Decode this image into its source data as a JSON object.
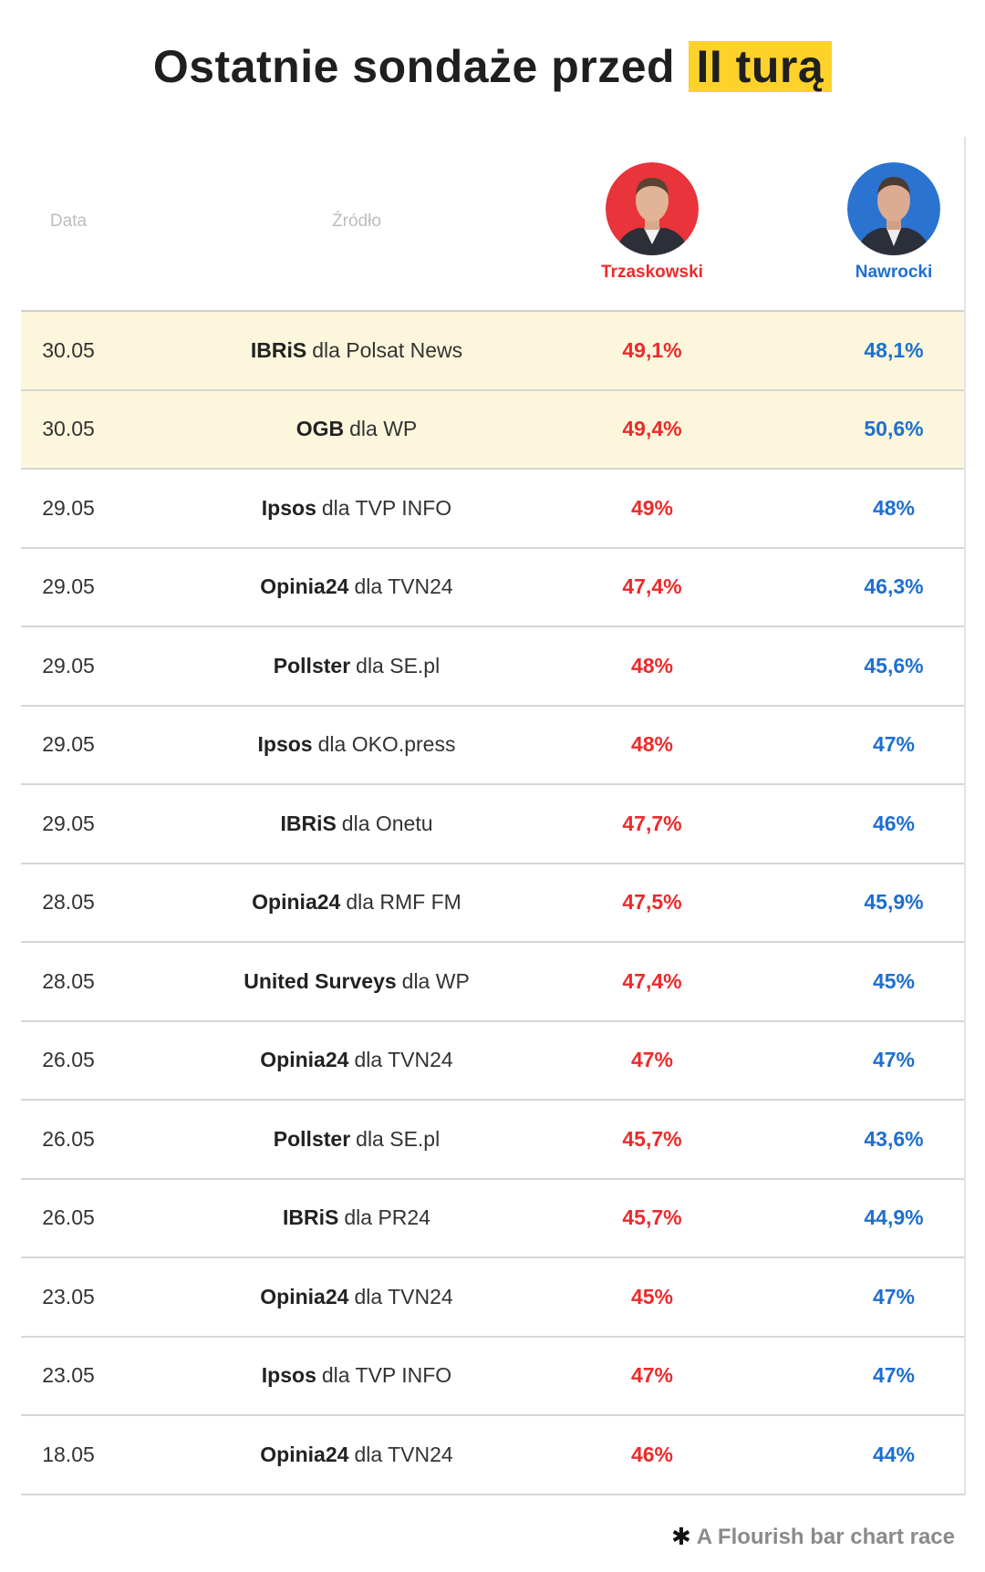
{
  "title": {
    "text": "Ostatnie sondaże przed",
    "highlight": "II turą"
  },
  "headers": {
    "date": "Data",
    "source": "Źródło"
  },
  "candidates": [
    {
      "name": "Trzaskowski",
      "color": "#ec2b2b"
    },
    {
      "name": "Nawrocki",
      "color": "#1e6fcf"
    }
  ],
  "highlight_color": "#fcf7dc",
  "rows": [
    {
      "date": "30.05",
      "pollster": "IBRiS",
      "media": "dla Polsat News",
      "trz": "49,1%",
      "naw": "48,1%",
      "highlighted": true
    },
    {
      "date": "30.05",
      "pollster": "OGB",
      "media": "dla WP",
      "trz": "49,4%",
      "naw": "50,6%",
      "highlighted": true
    },
    {
      "date": "29.05",
      "pollster": "Ipsos",
      "media": "dla TVP INFO",
      "trz": "49%",
      "naw": "48%"
    },
    {
      "date": "29.05",
      "pollster": "Opinia24",
      "media": "dla TVN24",
      "trz": "47,4%",
      "naw": "46,3%"
    },
    {
      "date": "29.05",
      "pollster": "Pollster",
      "media": "dla SE.pl",
      "trz": "48%",
      "naw": "45,6%"
    },
    {
      "date": "29.05",
      "pollster": "Ipsos",
      "media": "dla OKO.press",
      "trz": "48%",
      "naw": "47%"
    },
    {
      "date": "29.05",
      "pollster": "IBRiS",
      "media": "dla Onetu",
      "trz": "47,7%",
      "naw": "46%"
    },
    {
      "date": "28.05",
      "pollster": "Opinia24",
      "media": "dla RMF FM",
      "trz": "47,5%",
      "naw": "45,9%"
    },
    {
      "date": "28.05",
      "pollster": "United Surveys",
      "media": "dla WP",
      "trz": "47,4%",
      "naw": "45%"
    },
    {
      "date": "26.05",
      "pollster": "Opinia24",
      "media": "dla TVN24",
      "trz": "47%",
      "naw": "47%"
    },
    {
      "date": "26.05",
      "pollster": "Pollster",
      "media": "dla SE.pl",
      "trz": "45,7%",
      "naw": "43,6%"
    },
    {
      "date": "26.05",
      "pollster": "IBRiS",
      "media": "dla PR24",
      "trz": "45,7%",
      "naw": "44,9%"
    },
    {
      "date": "23.05",
      "pollster": "Opinia24",
      "media": "dla TVN24",
      "trz": "45%",
      "naw": "47%"
    },
    {
      "date": "23.05",
      "pollster": "Ipsos",
      "media": "dla TVP INFO",
      "trz": "47%",
      "naw": "47%"
    },
    {
      "date": "18.05",
      "pollster": "Opinia24",
      "media": "dla TVN24",
      "trz": "46%",
      "naw": "44%"
    }
  ],
  "footer": {
    "icon": "asterisk-icon",
    "text": "A Flourish bar chart race"
  }
}
